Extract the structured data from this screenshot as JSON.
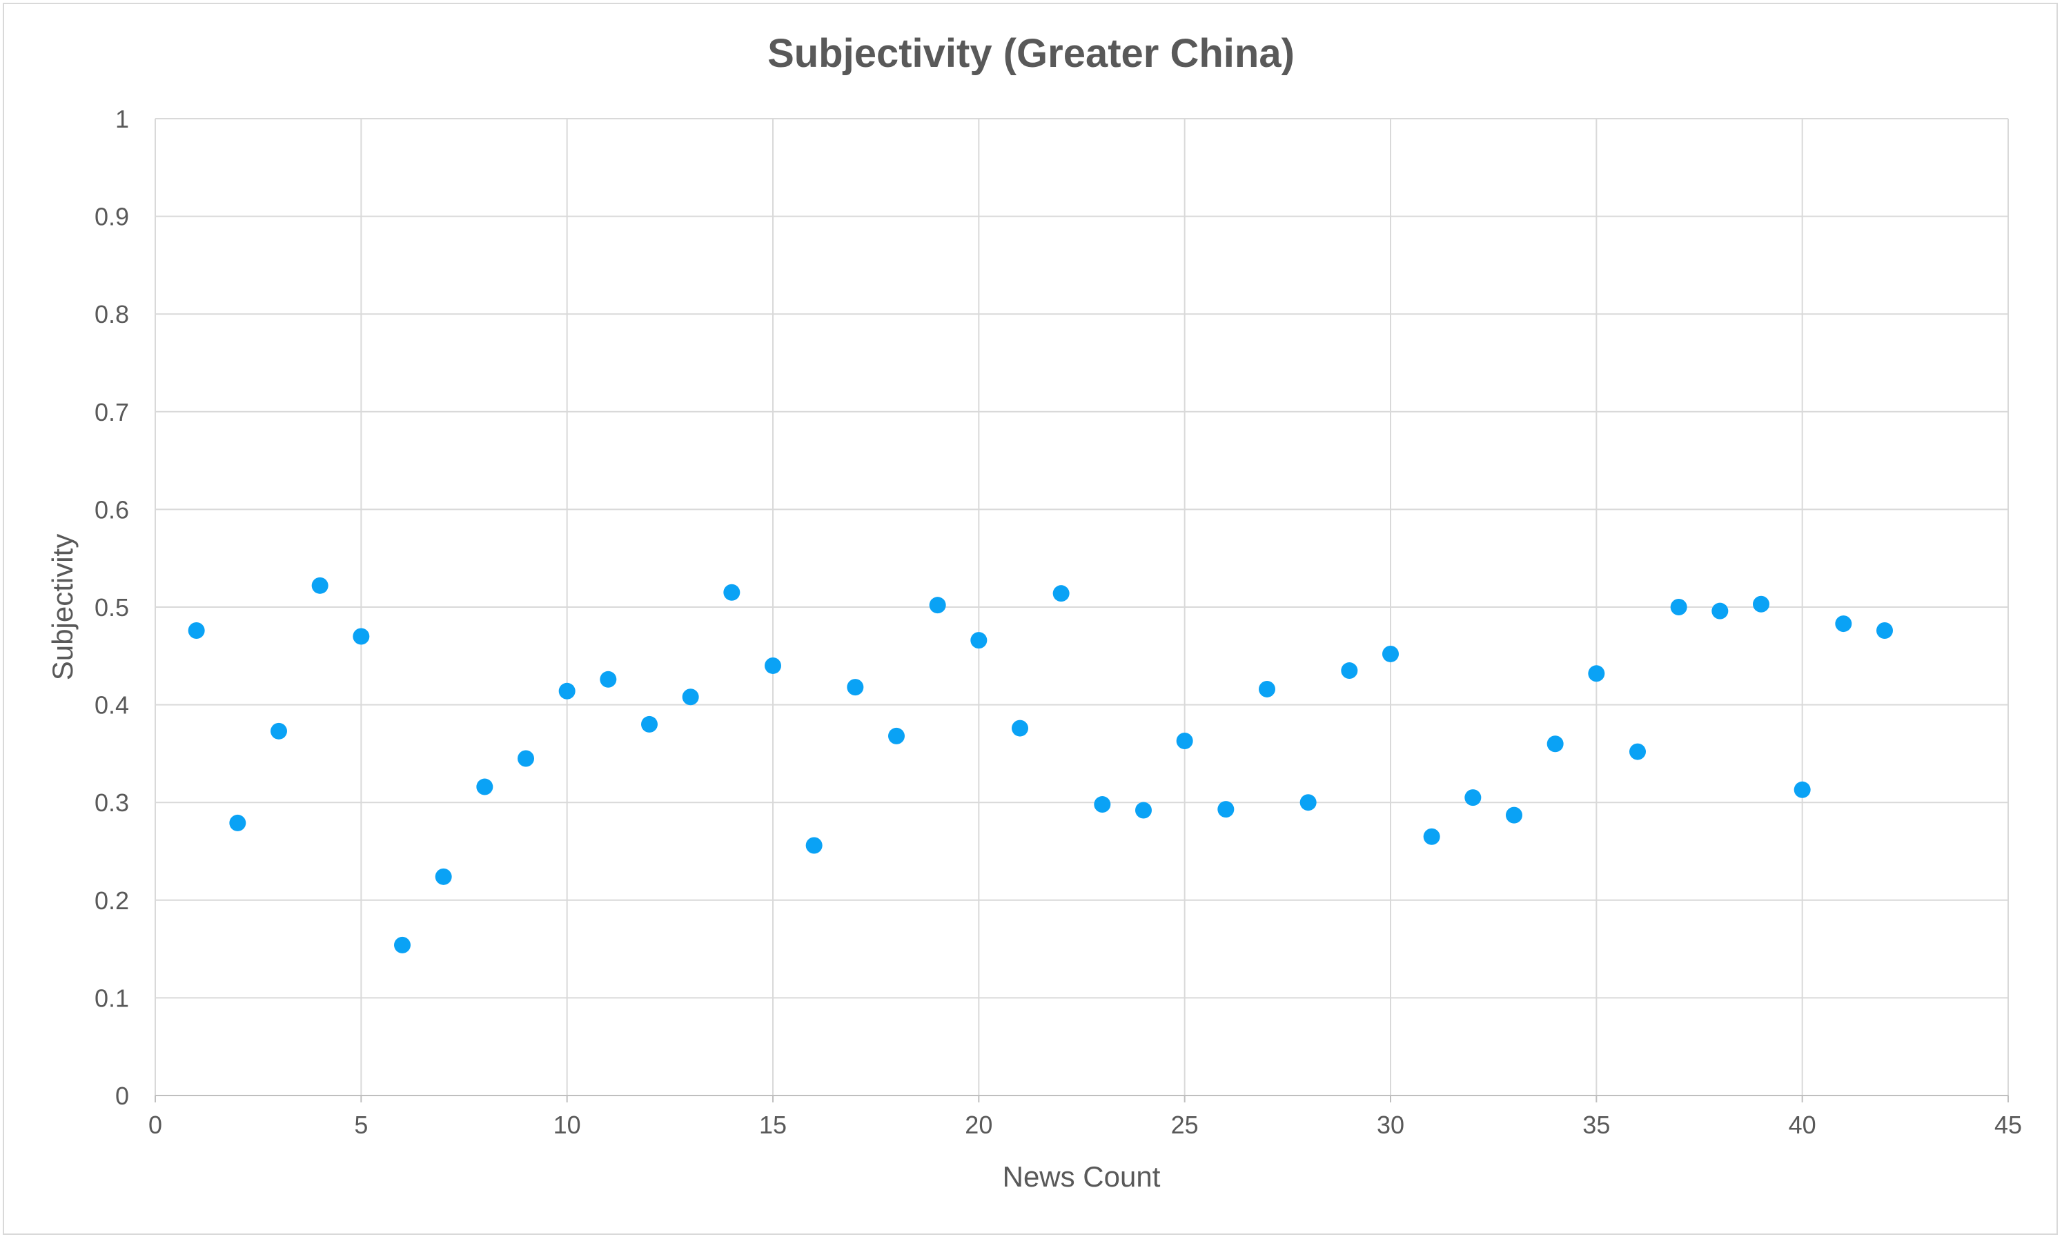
{
  "chart_data": {
    "type": "scatter",
    "title": "Subjectivity (Greater China)",
    "xlabel": "News Count",
    "ylabel": "Subjectivity",
    "xlim": [
      0,
      45
    ],
    "ylim": [
      0,
      1
    ],
    "x_ticks": [
      "0",
      "5",
      "10",
      "15",
      "20",
      "25",
      "30",
      "35",
      "40",
      "45"
    ],
    "y_ticks": [
      "0",
      "0.1",
      "0.2",
      "0.3",
      "0.4",
      "0.5",
      "0.6",
      "0.7",
      "0.8",
      "0.9",
      "1"
    ],
    "grid": true,
    "legend": "none",
    "marker_color": "#0aa2f5",
    "series": [
      {
        "x": [
          1,
          2,
          3,
          4,
          5,
          6,
          7,
          8,
          9,
          10,
          11,
          12,
          13,
          14,
          15,
          16,
          17,
          18,
          19,
          20,
          21,
          22,
          23,
          24,
          25,
          26,
          27,
          28,
          29,
          30,
          31,
          32,
          33,
          34,
          35,
          36,
          37,
          38,
          39,
          40,
          41,
          42
        ],
        "values": [
          0.476,
          0.279,
          0.373,
          0.522,
          0.47,
          0.154,
          0.224,
          0.316,
          0.345,
          0.414,
          0.426,
          0.38,
          0.408,
          0.515,
          0.44,
          0.256,
          0.418,
          0.368,
          0.502,
          0.466,
          0.376,
          0.514,
          0.298,
          0.292,
          0.363,
          0.293,
          0.416,
          0.3,
          0.435,
          0.452,
          0.265,
          0.305,
          0.287,
          0.36,
          0.432,
          0.352,
          0.5,
          0.496,
          0.503,
          0.313,
          0.483,
          0.476
        ]
      }
    ]
  }
}
